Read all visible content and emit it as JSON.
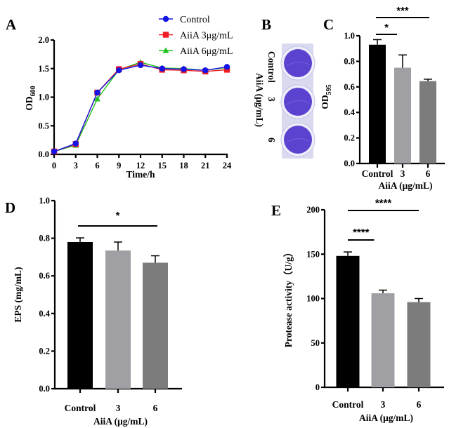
{
  "figure": {
    "panel_labels": [
      "A",
      "B",
      "C",
      "D",
      "E"
    ]
  },
  "panel_b": {
    "label": "B",
    "row_labels": [
      "Control",
      "3",
      "6"
    ],
    "group_label": "AiiA (μg/mL)",
    "well_color": "#5b43cf",
    "plate_color": "#d9d9f0"
  },
  "chart_data": [
    {
      "panel": "A",
      "type": "line",
      "title": "",
      "xlabel": "Time/h",
      "ylabel": "OD",
      "ylabel_sub": "600",
      "x": [
        0,
        3,
        6,
        9,
        12,
        15,
        18,
        21,
        24
      ],
      "xticks": [
        "0",
        "3",
        "6",
        "9",
        "12",
        "15",
        "18",
        "21",
        "24"
      ],
      "yticks": [
        "0.0",
        "0.5",
        "1.0",
        "1.5",
        "2.0"
      ],
      "xlim": [
        0,
        24
      ],
      "ylim": [
        0,
        2.0
      ],
      "legend_position": "top-right",
      "series": [
        {
          "name": "AiiA 6μg/mL",
          "color": "#1fc21f",
          "marker": "triangle",
          "values": [
            0.05,
            0.16,
            0.97,
            1.48,
            1.61,
            1.51,
            1.5,
            1.47,
            1.52
          ]
        },
        {
          "name": "AiiA 3μg/mL",
          "color": "#ee1c24",
          "marker": "square",
          "values": [
            0.05,
            0.18,
            1.08,
            1.49,
            1.58,
            1.48,
            1.47,
            1.45,
            1.48
          ]
        },
        {
          "name": "Control",
          "color": "#1414e6",
          "marker": "circle",
          "values": [
            0.05,
            0.19,
            1.08,
            1.47,
            1.56,
            1.5,
            1.49,
            1.47,
            1.53
          ]
        }
      ],
      "legend_order": [
        "Control",
        "AiiA 3μg/mL",
        "AiiA 6μg/mL"
      ]
    },
    {
      "panel": "C",
      "type": "bar",
      "title": "",
      "xlabel": "AiiA (μg/mL)",
      "ylabel": "OD",
      "ylabel_sub": "595",
      "categories": [
        "Control",
        "3",
        "6"
      ],
      "values": [
        0.93,
        0.75,
        0.645
      ],
      "errors": [
        0.04,
        0.1,
        0.015
      ],
      "colors": [
        "#000000",
        "#a0a0a4",
        "#7c7c7c"
      ],
      "yticks": [
        "0.0",
        "0.2",
        "0.4",
        "0.6",
        "0.8",
        "1.0"
      ],
      "ylim": [
        0,
        1.0
      ],
      "significance": [
        {
          "from": 0,
          "to": 2,
          "label": "***"
        },
        {
          "from": 0,
          "to": 1,
          "label": "*"
        }
      ]
    },
    {
      "panel": "D",
      "type": "bar",
      "title": "",
      "xlabel": "AiiA (μg/mL)",
      "ylabel": "EPS (mg/mL)",
      "categories": [
        "Control",
        "3",
        "6"
      ],
      "values": [
        0.78,
        0.735,
        0.67
      ],
      "errors": [
        0.022,
        0.045,
        0.037
      ],
      "colors": [
        "#000000",
        "#a0a0a4",
        "#7c7c7c"
      ],
      "yticks": [
        "0.0",
        "0.2",
        "0.4",
        "0.6",
        "0.8",
        "1.0"
      ],
      "ylim": [
        0,
        1.0
      ],
      "significance": [
        {
          "from": 0,
          "to": 2,
          "label": "*"
        }
      ]
    },
    {
      "panel": "E",
      "type": "bar",
      "title": "",
      "xlabel": "AiiA (μg/mL)",
      "ylabel": "Protease activity（U/g）",
      "categories": [
        "Control",
        "3",
        "6"
      ],
      "values": [
        148,
        106,
        96
      ],
      "errors": [
        4.5,
        3.5,
        4
      ],
      "colors": [
        "#000000",
        "#a0a0a4",
        "#7c7c7c"
      ],
      "yticks": [
        "0",
        "50",
        "100",
        "150",
        "200"
      ],
      "ylim": [
        0,
        200
      ],
      "significance": [
        {
          "from": 0,
          "to": 2,
          "label": "****"
        },
        {
          "from": 0,
          "to": 1,
          "label": "****"
        }
      ]
    }
  ]
}
